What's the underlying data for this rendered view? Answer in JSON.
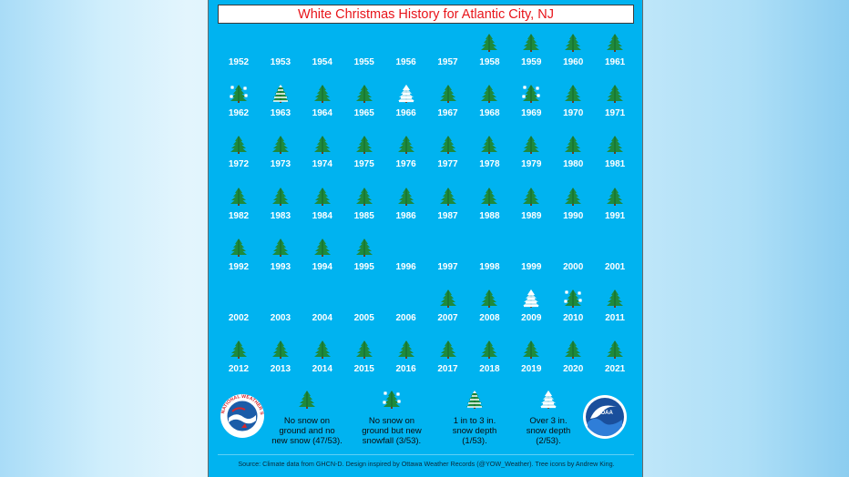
{
  "title": "White Christmas History for Atlantic City, NJ",
  "chart_data": {
    "type": "table",
    "title": "White Christmas History for Atlantic City, NJ",
    "category_codes": {
      "none": "",
      "nosnow": "No snow on ground and no new snow",
      "newsnow": "No snow on ground but new snowfall",
      "snow1to3": "1 in to 3 in. snow depth",
      "snow3plus": "Over 3 in. snow depth"
    },
    "years": [
      {
        "year": "1952",
        "category": "none"
      },
      {
        "year": "1953",
        "category": "none"
      },
      {
        "year": "1954",
        "category": "none"
      },
      {
        "year": "1955",
        "category": "none"
      },
      {
        "year": "1956",
        "category": "none"
      },
      {
        "year": "1957",
        "category": "none"
      },
      {
        "year": "1958",
        "category": "nosnow"
      },
      {
        "year": "1959",
        "category": "nosnow"
      },
      {
        "year": "1960",
        "category": "nosnow"
      },
      {
        "year": "1961",
        "category": "nosnow"
      },
      {
        "year": "1962",
        "category": "newsnow"
      },
      {
        "year": "1963",
        "category": "snow1to3"
      },
      {
        "year": "1964",
        "category": "nosnow"
      },
      {
        "year": "1965",
        "category": "nosnow"
      },
      {
        "year": "1966",
        "category": "snow3plus"
      },
      {
        "year": "1967",
        "category": "nosnow"
      },
      {
        "year": "1968",
        "category": "nosnow"
      },
      {
        "year": "1969",
        "category": "newsnow"
      },
      {
        "year": "1970",
        "category": "nosnow"
      },
      {
        "year": "1971",
        "category": "nosnow"
      },
      {
        "year": "1972",
        "category": "nosnow"
      },
      {
        "year": "1973",
        "category": "nosnow"
      },
      {
        "year": "1974",
        "category": "nosnow"
      },
      {
        "year": "1975",
        "category": "nosnow"
      },
      {
        "year": "1976",
        "category": "nosnow"
      },
      {
        "year": "1977",
        "category": "nosnow"
      },
      {
        "year": "1978",
        "category": "nosnow"
      },
      {
        "year": "1979",
        "category": "nosnow"
      },
      {
        "year": "1980",
        "category": "nosnow"
      },
      {
        "year": "1981",
        "category": "nosnow"
      },
      {
        "year": "1982",
        "category": "nosnow"
      },
      {
        "year": "1983",
        "category": "nosnow"
      },
      {
        "year": "1984",
        "category": "nosnow"
      },
      {
        "year": "1985",
        "category": "nosnow"
      },
      {
        "year": "1986",
        "category": "nosnow"
      },
      {
        "year": "1987",
        "category": "nosnow"
      },
      {
        "year": "1988",
        "category": "nosnow"
      },
      {
        "year": "1989",
        "category": "nosnow"
      },
      {
        "year": "1990",
        "category": "nosnow"
      },
      {
        "year": "1991",
        "category": "nosnow"
      },
      {
        "year": "1992",
        "category": "nosnow"
      },
      {
        "year": "1993",
        "category": "nosnow"
      },
      {
        "year": "1994",
        "category": "nosnow"
      },
      {
        "year": "1995",
        "category": "nosnow"
      },
      {
        "year": "1996",
        "category": "none"
      },
      {
        "year": "1997",
        "category": "none"
      },
      {
        "year": "1998",
        "category": "none"
      },
      {
        "year": "1999",
        "category": "none"
      },
      {
        "year": "2000",
        "category": "none"
      },
      {
        "year": "2001",
        "category": "none"
      },
      {
        "year": "2002",
        "category": "none"
      },
      {
        "year": "2003",
        "category": "none"
      },
      {
        "year": "2004",
        "category": "none"
      },
      {
        "year": "2005",
        "category": "none"
      },
      {
        "year": "2006",
        "category": "none"
      },
      {
        "year": "2007",
        "category": "nosnow"
      },
      {
        "year": "2008",
        "category": "nosnow"
      },
      {
        "year": "2009",
        "category": "snow3plus"
      },
      {
        "year": "2010",
        "category": "newsnow"
      },
      {
        "year": "2011",
        "category": "nosnow"
      },
      {
        "year": "2012",
        "category": "nosnow"
      },
      {
        "year": "2013",
        "category": "nosnow"
      },
      {
        "year": "2014",
        "category": "nosnow"
      },
      {
        "year": "2015",
        "category": "nosnow"
      },
      {
        "year": "2016",
        "category": "nosnow"
      },
      {
        "year": "2017",
        "category": "nosnow"
      },
      {
        "year": "2018",
        "category": "nosnow"
      },
      {
        "year": "2019",
        "category": "nosnow"
      },
      {
        "year": "2020",
        "category": "nosnow"
      },
      {
        "year": "2021",
        "category": "nosnow"
      }
    ],
    "legend": [
      {
        "category": "nosnow",
        "lines": [
          "No snow on",
          "ground and no",
          "new snow (47/53)."
        ]
      },
      {
        "category": "newsnow",
        "lines": [
          "No snow on",
          "ground but new",
          "snowfall (3/53)."
        ]
      },
      {
        "category": "snow1to3",
        "lines": [
          "1 in to 3 in.",
          "snow depth",
          "(1/53)."
        ]
      },
      {
        "category": "snow3plus",
        "lines": [
          "Over 3 in.",
          "snow depth",
          "(2/53)."
        ]
      }
    ]
  },
  "logos": {
    "nws": {
      "text": "NATIONAL WEATHER SERVICE",
      "color": "#d6262c"
    },
    "noaa": {
      "text": "NOAA",
      "color": "#1a4f9c"
    }
  },
  "source": "Source: Climate data from GHCN-D.   Design inspired by Ottawa Weather Records (@YOW_Weather). Tree icons by Andrew King.",
  "colors": {
    "background": "#00b3f0",
    "title": "#e8141a",
    "tree_green": "#1f8a3c",
    "tree_dark": "#0f5a24",
    "trunk": "#6b3f1e",
    "snow": "#ffffff"
  }
}
